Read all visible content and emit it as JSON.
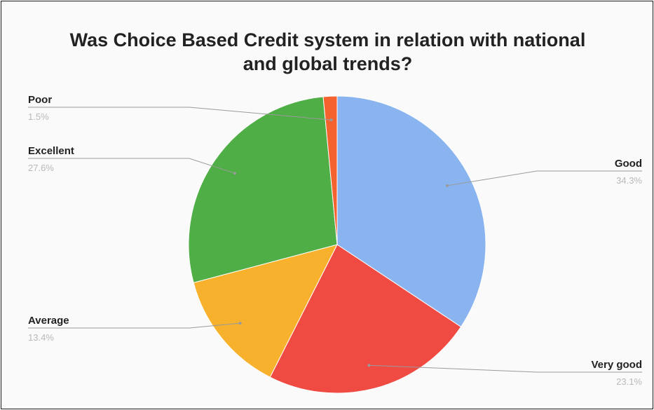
{
  "chart_data": {
    "type": "pie",
    "title_lines": [
      "Was Choice Based Credit system in relation with national",
      "and global trends?"
    ],
    "slices": [
      {
        "label": "Good",
        "value": 34.3,
        "value_label": "34.3%",
        "color": "#8ab4f0"
      },
      {
        "label": "Very good",
        "value": 23.1,
        "value_label": "23.1%",
        "color": "#ef4b43"
      },
      {
        "label": "Average",
        "value": 13.4,
        "value_label": "13.4%",
        "color": "#f7b12c"
      },
      {
        "label": "Excellent",
        "value": 27.6,
        "value_label": "27.6%",
        "color": "#4fae45"
      },
      {
        "label": "Poor",
        "value": 1.5,
        "value_label": "1.5%",
        "color": "#f4622f"
      }
    ],
    "start": "12 o'clock",
    "direction": "clockwise",
    "legend": "none",
    "label_style": "callout lines with name and percentage"
  }
}
